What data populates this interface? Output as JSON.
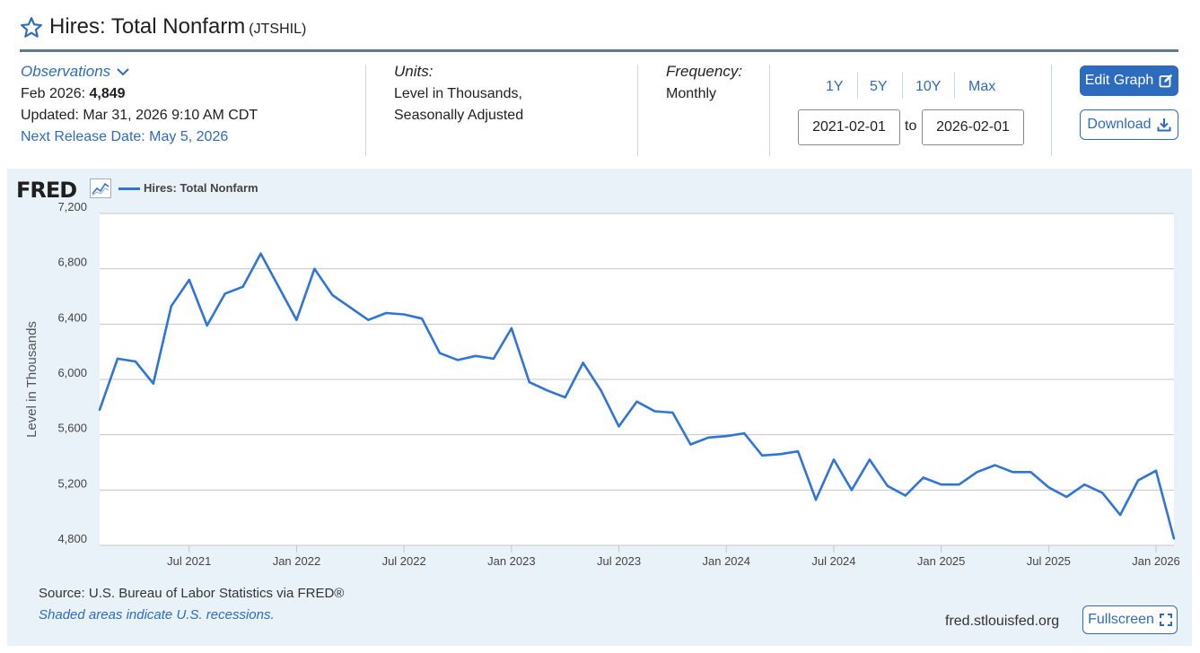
{
  "header": {
    "title": "Hires: Total Nonfarm",
    "series_code": "(JTSHIL)"
  },
  "observations": {
    "label": "Observations",
    "latest_prefix": "Feb 2026: ",
    "latest_value": "4,849",
    "updated": "Updated: Mar 31, 2026 9:10 AM CDT",
    "next_release": "Next Release Date: May 5, 2026"
  },
  "units": {
    "label": "Units:",
    "line1": "Level in Thousands,",
    "line2": "Seasonally Adjusted"
  },
  "frequency": {
    "label": "Frequency:",
    "value": "Monthly"
  },
  "range": {
    "buttons": [
      "1Y",
      "5Y",
      "10Y",
      "Max"
    ],
    "start": "2021-02-01",
    "to_label": "to",
    "end": "2026-02-01"
  },
  "actions": {
    "edit_graph": "Edit Graph",
    "download": "Download",
    "fullscreen": "Fullscreen"
  },
  "footer": {
    "source": "Source: U.S. Bureau of Labor Statistics via FRED®",
    "recession_note": "Shaded areas indicate U.S. recessions.",
    "site": "fred.stlouisfed.org"
  },
  "brand": {
    "logo": "FRED"
  },
  "colors": {
    "accent": "#2d6bbf",
    "series": "#2f74d9",
    "panel_bg": "#e9f2f9"
  },
  "chart_data": {
    "type": "line",
    "title": "",
    "ylabel": "Level in Thousands",
    "xlabel": "",
    "legend": "Hires: Total Nonfarm",
    "legend_placement": "top-left",
    "grid": true,
    "ylim": [
      4800,
      7200
    ],
    "yticks": [
      4800,
      5200,
      5600,
      6000,
      6400,
      6800,
      7200
    ],
    "ytick_labels": [
      "4,800",
      "5,200",
      "5,600",
      "6,000",
      "6,400",
      "6,800",
      "7,200"
    ],
    "xlim": [
      "2021-02",
      "2026-02"
    ],
    "xticks": [
      "2021-07",
      "2022-01",
      "2022-07",
      "2023-01",
      "2023-07",
      "2024-01",
      "2024-07",
      "2025-01",
      "2025-07",
      "2026-01"
    ],
    "xtick_labels": [
      "Jul 2021",
      "Jan 2022",
      "Jul 2022",
      "Jan 2023",
      "Jul 2023",
      "Jan 2024",
      "Jul 2024",
      "Jan 2025",
      "Jul 2025",
      "Jan 2026"
    ],
    "series": [
      {
        "name": "Hires: Total Nonfarm",
        "x": [
          "2021-02",
          "2021-03",
          "2021-04",
          "2021-05",
          "2021-06",
          "2021-07",
          "2021-08",
          "2021-09",
          "2021-10",
          "2021-11",
          "2021-12",
          "2022-01",
          "2022-02",
          "2022-03",
          "2022-04",
          "2022-05",
          "2022-06",
          "2022-07",
          "2022-08",
          "2022-09",
          "2022-10",
          "2022-11",
          "2022-12",
          "2023-01",
          "2023-02",
          "2023-03",
          "2023-04",
          "2023-05",
          "2023-06",
          "2023-07",
          "2023-08",
          "2023-09",
          "2023-10",
          "2023-11",
          "2023-12",
          "2024-01",
          "2024-02",
          "2024-03",
          "2024-04",
          "2024-05",
          "2024-06",
          "2024-07",
          "2024-08",
          "2024-09",
          "2024-10",
          "2024-11",
          "2024-12",
          "2025-01",
          "2025-02",
          "2025-03",
          "2025-04",
          "2025-05",
          "2025-06",
          "2025-07",
          "2025-08",
          "2025-09",
          "2025-10",
          "2025-11",
          "2025-12",
          "2026-01",
          "2026-02"
        ],
        "values": [
          5780,
          6150,
          6130,
          5970,
          6530,
          6720,
          6390,
          6620,
          6670,
          6910,
          6670,
          6430,
          6800,
          6610,
          6520,
          6430,
          6480,
          6470,
          6440,
          6190,
          6140,
          6170,
          6150,
          6370,
          5980,
          5920,
          5870,
          6120,
          5920,
          5660,
          5840,
          5770,
          5760,
          5530,
          5580,
          5590,
          5610,
          5450,
          5460,
          5480,
          5130,
          5420,
          5200,
          5420,
          5230,
          5160,
          5290,
          5240,
          5240,
          5330,
          5380,
          5330,
          5330,
          5220,
          5150,
          5240,
          5180,
          5020,
          5270,
          5340,
          4849
        ]
      }
    ]
  }
}
